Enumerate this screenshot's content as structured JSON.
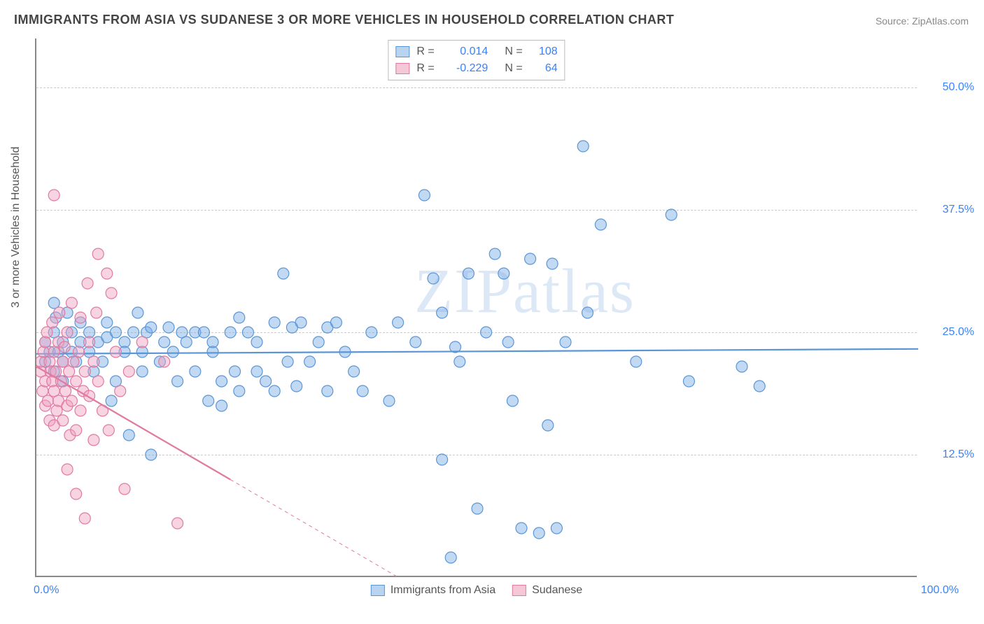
{
  "title": "IMMIGRANTS FROM ASIA VS SUDANESE 3 OR MORE VEHICLES IN HOUSEHOLD CORRELATION CHART",
  "source": "Source: ZipAtlas.com",
  "watermark": "ZIPatlas",
  "yaxis_title": "3 or more Vehicles in Household",
  "chart": {
    "type": "scatter",
    "xlim": [
      0,
      100
    ],
    "ylim": [
      0,
      55
    ],
    "yticks": [
      12.5,
      25.0,
      37.5,
      50.0
    ],
    "ytick_labels": [
      "12.5%",
      "25.0%",
      "37.5%",
      "50.0%"
    ],
    "xticks": [
      0,
      100
    ],
    "xtick_labels": [
      "0.0%",
      "100.0%"
    ],
    "grid_color": "#cccccc",
    "axis_color": "#888888",
    "background": "#ffffff",
    "marker_radius": 8,
    "marker_stroke_width": 1.2,
    "line_width": 2.2
  },
  "series": [
    {
      "name": "Immigrants from Asia",
      "fill": "rgba(120,170,230,0.45)",
      "stroke": "#5a96d6",
      "swatch_fill": "#b8d4f0",
      "swatch_border": "#5a96d6",
      "R": "0.014",
      "N": "108",
      "regression": {
        "x1": 0,
        "y1": 22.8,
        "x2": 100,
        "y2": 23.3,
        "solid_to_x": 100
      },
      "points": [
        [
          1,
          22
        ],
        [
          1,
          24
        ],
        [
          1.5,
          23
        ],
        [
          2,
          25
        ],
        [
          2,
          21
        ],
        [
          2.2,
          26.5
        ],
        [
          2.5,
          23
        ],
        [
          3,
          24
        ],
        [
          3,
          22
        ],
        [
          3.5,
          27
        ],
        [
          4,
          23
        ],
        [
          4,
          25
        ],
        [
          4.5,
          22
        ],
        [
          5,
          24
        ],
        [
          6,
          23
        ],
        [
          6,
          25
        ],
        [
          7,
          24
        ],
        [
          7.5,
          22
        ],
        [
          8,
          24.5
        ],
        [
          8,
          26
        ],
        [
          9,
          20
        ],
        [
          9,
          25
        ],
        [
          10,
          24
        ],
        [
          10,
          23
        ],
        [
          10.5,
          14.5
        ],
        [
          11,
          25
        ],
        [
          12,
          23
        ],
        [
          12,
          21
        ],
        [
          12.5,
          25
        ],
        [
          13,
          25.5
        ],
        [
          13,
          12.5
        ],
        [
          14,
          22
        ],
        [
          14.5,
          24
        ],
        [
          15,
          25.5
        ],
        [
          15.5,
          23
        ],
        [
          16,
          20
        ],
        [
          16.5,
          25
        ],
        [
          17,
          24
        ],
        [
          18,
          25
        ],
        [
          18,
          21
        ],
        [
          19,
          25
        ],
        [
          19.5,
          18
        ],
        [
          20,
          23
        ],
        [
          20,
          24
        ],
        [
          21,
          20
        ],
        [
          21,
          17.5
        ],
        [
          22,
          25
        ],
        [
          22.5,
          21
        ],
        [
          23,
          26.5
        ],
        [
          23,
          19
        ],
        [
          24,
          25
        ],
        [
          25,
          21
        ],
        [
          25,
          24
        ],
        [
          26,
          20
        ],
        [
          27,
          26
        ],
        [
          27,
          19
        ],
        [
          28,
          31
        ],
        [
          28.5,
          22
        ],
        [
          29,
          25.5
        ],
        [
          29.5,
          19.5
        ],
        [
          30,
          26
        ],
        [
          31,
          22
        ],
        [
          32,
          24
        ],
        [
          33,
          25.5
        ],
        [
          33,
          19
        ],
        [
          34,
          26
        ],
        [
          35,
          23
        ],
        [
          36,
          21
        ],
        [
          37,
          19
        ],
        [
          38,
          25
        ],
        [
          40,
          18
        ],
        [
          41,
          26
        ],
        [
          43,
          24
        ],
        [
          44,
          39
        ],
        [
          45,
          30.5
        ],
        [
          46,
          12
        ],
        [
          46,
          27
        ],
        [
          47,
          2
        ],
        [
          47.5,
          23.5
        ],
        [
          48,
          22
        ],
        [
          49,
          31
        ],
        [
          50,
          7
        ],
        [
          51,
          25
        ],
        [
          52,
          33
        ],
        [
          53,
          31
        ],
        [
          53.5,
          24
        ],
        [
          54,
          18
        ],
        [
          55,
          5
        ],
        [
          56,
          32.5
        ],
        [
          57,
          4.5
        ],
        [
          58,
          15.5
        ],
        [
          58.5,
          32
        ],
        [
          59,
          5
        ],
        [
          60,
          24
        ],
        [
          62,
          44
        ],
        [
          62.5,
          27
        ],
        [
          64,
          36
        ],
        [
          68,
          22
        ],
        [
          72,
          37
        ],
        [
          74,
          20
        ],
        [
          80,
          21.5
        ],
        [
          82,
          19.5
        ],
        [
          2,
          28
        ],
        [
          3,
          20
        ],
        [
          5,
          26
        ],
        [
          6.5,
          21
        ],
        [
          8.5,
          18
        ],
        [
          11.5,
          27
        ]
      ]
    },
    {
      "name": "Sudanese",
      "fill": "rgba(240,160,190,0.45)",
      "stroke": "#e07aa0",
      "swatch_fill": "#f5c8d8",
      "swatch_border": "#e07aa0",
      "R": "-0.229",
      "N": "64",
      "regression": {
        "x1": 0,
        "y1": 21.5,
        "x2": 41,
        "y2": 0,
        "solid_to_x": 22
      },
      "points": [
        [
          0.5,
          21
        ],
        [
          0.5,
          22
        ],
        [
          0.7,
          19
        ],
        [
          0.8,
          23
        ],
        [
          1,
          20
        ],
        [
          1,
          17.5
        ],
        [
          1,
          24
        ],
        [
          1.2,
          25
        ],
        [
          1.3,
          18
        ],
        [
          1.5,
          22
        ],
        [
          1.5,
          16
        ],
        [
          1.6,
          21
        ],
        [
          1.8,
          20
        ],
        [
          1.8,
          26
        ],
        [
          2,
          19
        ],
        [
          2,
          23
        ],
        [
          2,
          15.5
        ],
        [
          2.2,
          21
        ],
        [
          2.3,
          17
        ],
        [
          2.5,
          24
        ],
        [
          2.5,
          18
        ],
        [
          2.6,
          27
        ],
        [
          2.8,
          20
        ],
        [
          3,
          22
        ],
        [
          3,
          16
        ],
        [
          3.2,
          23.5
        ],
        [
          3.3,
          19
        ],
        [
          3.5,
          25
        ],
        [
          3.5,
          17.5
        ],
        [
          3.7,
          21
        ],
        [
          3.8,
          14.5
        ],
        [
          4,
          28
        ],
        [
          4,
          18
        ],
        [
          4.2,
          22
        ],
        [
          4.5,
          20
        ],
        [
          4.5,
          15
        ],
        [
          4.8,
          23
        ],
        [
          5,
          26.5
        ],
        [
          5,
          17
        ],
        [
          5.3,
          19
        ],
        [
          5.5,
          21
        ],
        [
          5.8,
          30
        ],
        [
          6,
          24
        ],
        [
          6,
          18.5
        ],
        [
          6.5,
          22
        ],
        [
          6.8,
          27
        ],
        [
          7,
          33
        ],
        [
          7,
          20
        ],
        [
          7.5,
          17
        ],
        [
          8,
          31
        ],
        [
          8.2,
          15
        ],
        [
          8.5,
          29
        ],
        [
          9,
          23
        ],
        [
          9.5,
          19
        ],
        [
          2,
          39
        ],
        [
          10,
          9
        ],
        [
          10.5,
          21
        ],
        [
          5.5,
          6
        ],
        [
          12,
          24
        ],
        [
          6.5,
          14
        ],
        [
          14.5,
          22
        ],
        [
          16,
          5.5
        ],
        [
          3.5,
          11
        ],
        [
          4.5,
          8.5
        ]
      ]
    }
  ],
  "legend_bottom": [
    {
      "label": "Immigrants from Asia",
      "series": 0
    },
    {
      "label": "Sudanese",
      "series": 1
    }
  ]
}
